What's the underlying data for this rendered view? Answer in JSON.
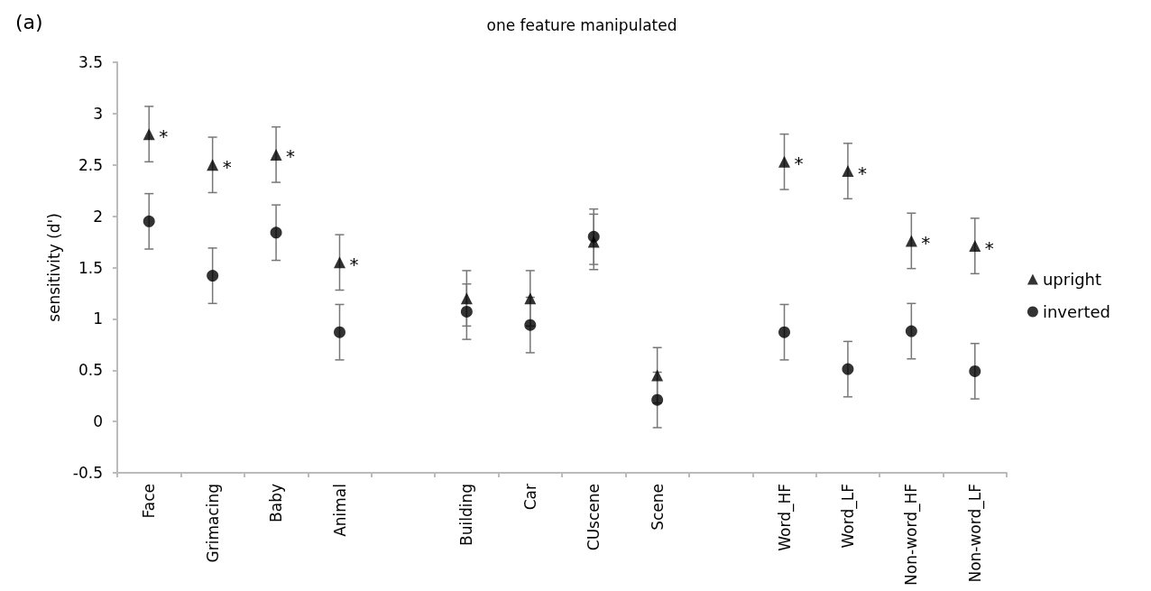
{
  "chart_data": {
    "type": "scatter",
    "title": "one feature manipulated",
    "ylabel": "sensitivity (d')",
    "annotations": [
      "(a)",
      {
        "text": "*",
        "x": "Face",
        "y": 2.8
      },
      {
        "text": "*",
        "x": "Grimacing",
        "y": 2.5
      },
      {
        "text": "*",
        "x": "Baby",
        "y": 2.6
      },
      {
        "text": "*",
        "x": "Animal",
        "y": 1.55
      },
      {
        "text": "*",
        "x": "Word_HF",
        "y": 2.53
      },
      {
        "text": "*",
        "x": "Word_LF",
        "y": 2.44
      },
      {
        "text": "*",
        "x": "Non-word_HF",
        "y": 1.76
      },
      {
        "text": "*",
        "x": "Non-word_LF",
        "y": 1.71
      }
    ],
    "categories": [
      "Face",
      "Grimacing",
      "Baby",
      "Animal",
      null,
      "Building",
      "Car",
      "CUscene",
      "Scene",
      null,
      "Word_HF",
      "Word_LF",
      "Non-word_HF",
      "Non-word_LF"
    ],
    "series": [
      {
        "name": "upright",
        "color": "#000000",
        "marker": "triangle",
        "values": [
          2.8,
          2.5,
          2.6,
          1.55,
          null,
          1.2,
          1.2,
          1.75,
          0.45,
          null,
          2.53,
          2.44,
          1.76,
          1.71
        ],
        "errors": [
          0.27,
          0.27,
          0.27,
          0.27,
          null,
          0.27,
          0.27,
          0.27,
          0.27,
          null,
          0.27,
          0.27,
          0.27,
          0.27
        ]
      },
      {
        "name": "inverted",
        "color": "#000000",
        "marker": "circle",
        "values": [
          1.95,
          1.42,
          1.84,
          0.87,
          null,
          1.07,
          0.94,
          1.8,
          0.21,
          null,
          0.87,
          0.51,
          0.88,
          0.49
        ],
        "errors": [
          0.27,
          0.27,
          0.27,
          0.27,
          null,
          0.27,
          0.27,
          0.27,
          0.27,
          null,
          0.27,
          0.27,
          0.27,
          0.27
        ]
      }
    ],
    "ylim": [
      -0.5,
      3.5
    ],
    "yticks": [
      -0.5,
      0,
      0.5,
      1,
      1.5,
      2,
      2.5,
      3,
      3.5
    ],
    "grid": false,
    "legend": "right"
  }
}
